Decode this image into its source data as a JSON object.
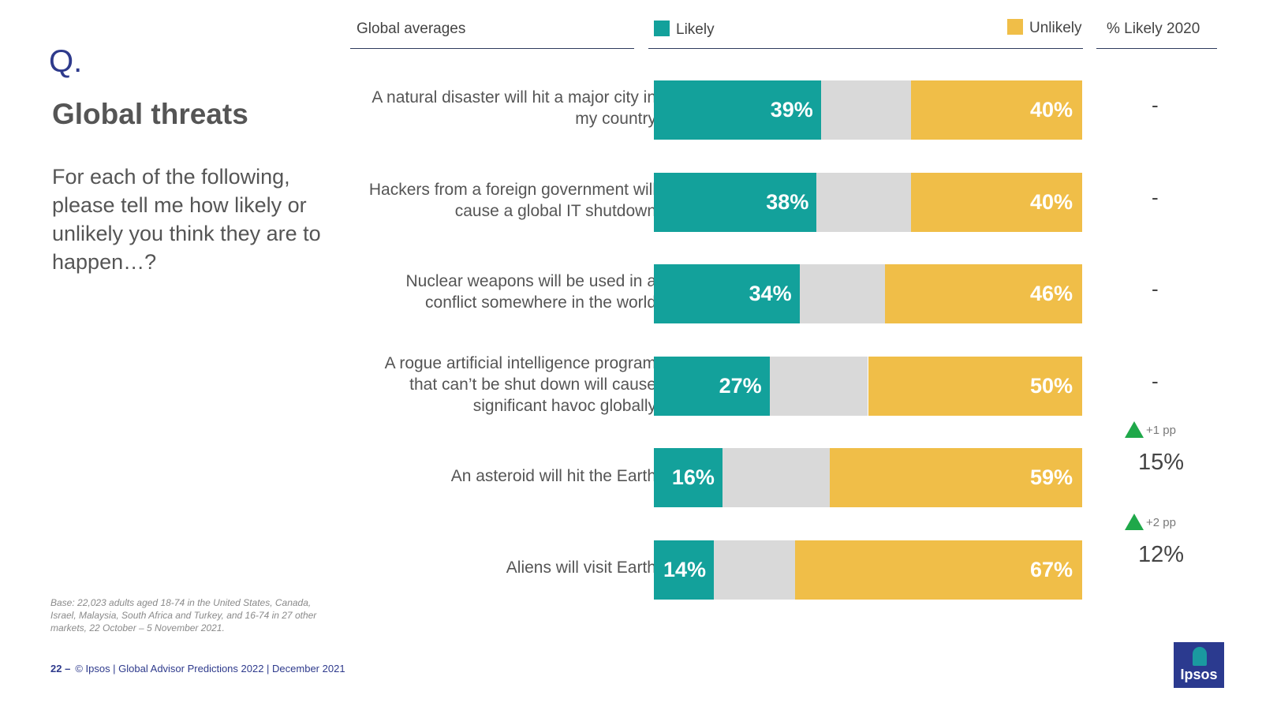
{
  "slide": {
    "q_mark": "Q.",
    "title": "Global threats",
    "question": "For each of the following, please tell me how likely or unlikely you think they are to happen…?",
    "base": "Base: 22,023 adults aged 18-74 in the United States, Canada, Israel, Malaysia, South Africa and Turkey, and 16-74 in 27 other markets, 22 October – 5 November 2021.",
    "footer_page": "22 –",
    "footer_text": "© Ipsos | Global Advisor Predictions 2022 | December 2021",
    "logo_text": "Ipsos"
  },
  "headers": {
    "global": "Global averages",
    "likely": "Likely",
    "unlikely": "Unlikely",
    "likely2020": "% Likely 2020"
  },
  "colors": {
    "likely": "#13a19b",
    "middle": "#d9d9d9",
    "unlikely": "#f0be48",
    "up_arrow": "#1fa84a"
  },
  "chart_data": {
    "type": "bar",
    "orientation": "horizontal-stacked",
    "xlim": [
      0,
      100
    ],
    "categories": [
      "A natural disaster will hit a major city in my country",
      "Hackers from a foreign government will cause a global IT shutdown",
      "Nuclear weapons will be used in a conflict somewhere in the world",
      "A rogue artificial intelligence program that can’t be shut down will cause significant havoc globally",
      "An asteroid will hit the Earth",
      "Aliens will visit Earth"
    ],
    "series": [
      {
        "name": "Likely",
        "values": [
          39,
          38,
          34,
          27,
          16,
          14
        ]
      },
      {
        "name": "Unlikely",
        "values": [
          40,
          40,
          46,
          50,
          59,
          67
        ]
      }
    ],
    "labels_likely": [
      "39%",
      "38%",
      "34%",
      "27%",
      "16%",
      "14%"
    ],
    "labels_unlikely": [
      "40%",
      "40%",
      "46%",
      "50%",
      "59%",
      "67%"
    ],
    "likely_2020": [
      "-",
      "-",
      "-",
      "-",
      "15%",
      "12%"
    ],
    "change_2020": [
      "",
      "",
      "",
      "",
      "+1 pp",
      "+2 pp"
    ]
  }
}
